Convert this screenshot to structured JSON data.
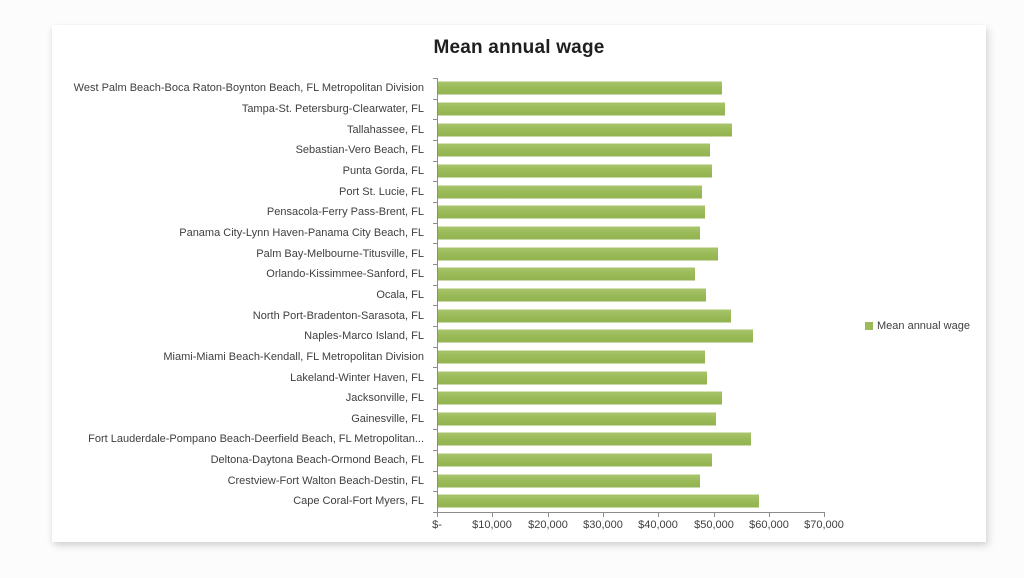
{
  "legend": {
    "label": "Mean annual wage",
    "swatch_color": "#9bbb59"
  },
  "chart_data": {
    "type": "bar",
    "orientation": "horizontal",
    "title": "Mean annual wage",
    "xlabel": "",
    "ylabel": "",
    "grid": false,
    "legend_position": "right",
    "bar_color": "#9bbb59",
    "xlim": [
      0,
      70000
    ],
    "x_ticks": [
      "$-",
      "$10,000",
      "$20,000",
      "$30,000",
      "$40,000",
      "$50,000",
      "$60,000",
      "$70,000"
    ],
    "categories": [
      "West Palm Beach-Boca Raton-Boynton Beach, FL Metropolitan Division",
      "Tampa-St. Petersburg-Clearwater, FL",
      "Tallahassee, FL",
      "Sebastian-Vero Beach, FL",
      "Punta Gorda, FL",
      "Port St. Lucie, FL",
      "Pensacola-Ferry Pass-Brent, FL",
      "Panama City-Lynn Haven-Panama City Beach, FL",
      "Palm Bay-Melbourne-Titusville, FL",
      "Orlando-Kissimmee-Sanford, FL",
      "Ocala, FL",
      "North Port-Bradenton-Sarasota, FL",
      "Naples-Marco Island, FL",
      "Miami-Miami Beach-Kendall, FL Metropolitan Division",
      "Lakeland-Winter Haven, FL",
      "Jacksonville, FL",
      "Gainesville, FL",
      "Fort Lauderdale-Pompano Beach-Deerfield Beach, FL Metropolitan...",
      "Deltona-Daytona Beach-Ormond Beach, FL",
      "Crestview-Fort Walton Beach-Destin, FL",
      "Cape Coral-Fort Myers, FL"
    ],
    "values": [
      51600,
      52000,
      53400,
      49400,
      49800,
      48000,
      48400,
      47500,
      50900,
      46600,
      48700,
      53100,
      57200,
      48400,
      48800,
      51500,
      50400,
      56700,
      49800,
      47500,
      58300
    ]
  }
}
